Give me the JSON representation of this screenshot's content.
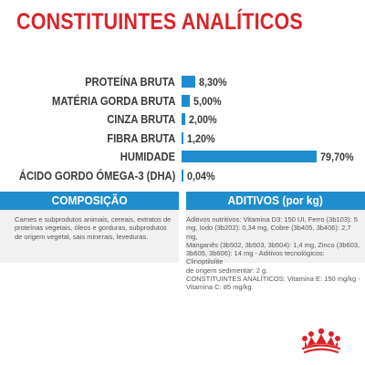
{
  "title": "CONSTITUINTES ANALÍTICOS",
  "colors": {
    "title": "#d8252a",
    "bar": "#1f8ccd",
    "label": "#3a3a3a",
    "panel": "#f1f1f1",
    "panel_text": "#555555",
    "logo": "#d8252a"
  },
  "chart_data": {
    "type": "bar",
    "orientation": "horizontal",
    "title": "CONSTITUINTES ANALÍTICOS",
    "categories": [
      "PROTEÍNA BRUTA",
      "MATÉRIA GORDA BRUTA",
      "CINZA BRUTA",
      "FIBRA BRUTA",
      "HUMIDADE",
      "ÁCIDO GORDO ÓMEGA-3 (DHA)"
    ],
    "values": [
      8.3,
      5.0,
      2.0,
      1.2,
      79.7,
      0.04
    ],
    "value_labels": [
      "8,30%",
      "5,00%",
      "2,00%",
      "1,20%",
      "79,70%",
      "0,04%"
    ],
    "unit": "%",
    "xlabel": "",
    "ylabel": "",
    "grid": false,
    "legend": "none"
  },
  "sections": {
    "composicao": {
      "header": "COMPOSIÇÃO",
      "lines": [
        "Carnes e subprodutos animais, cereais, extratos de",
        "proteínas vegetais, óleos e gorduras, subprodutos",
        "de origem vegetal, sais minerais, leveduras."
      ]
    },
    "aditivos": {
      "header": "ADITIVOS (por kg)",
      "lines": [
        "Aditivos nutritivos: Vitamina D3: 150 UI, Ferro (3b103): 5",
        "mg, Iodo (3b202): 0,34 mg, Cobre (3b405, 3b406): 2,7 mg,",
        "Manganês (3b502, 3b503, 3b504): 1,4 mg, Zinco (3b603,",
        "3b605, 3b606): 14 mg - Aditivos tecnológicos: Clinoptilolite",
        "de origem sedimentar: 2 g.",
        "CONSTITUINTES ANALÍTICOS: Vitamina E: 150 mg/kg -",
        "Vitamina C: 85 mg/kg."
      ]
    }
  }
}
